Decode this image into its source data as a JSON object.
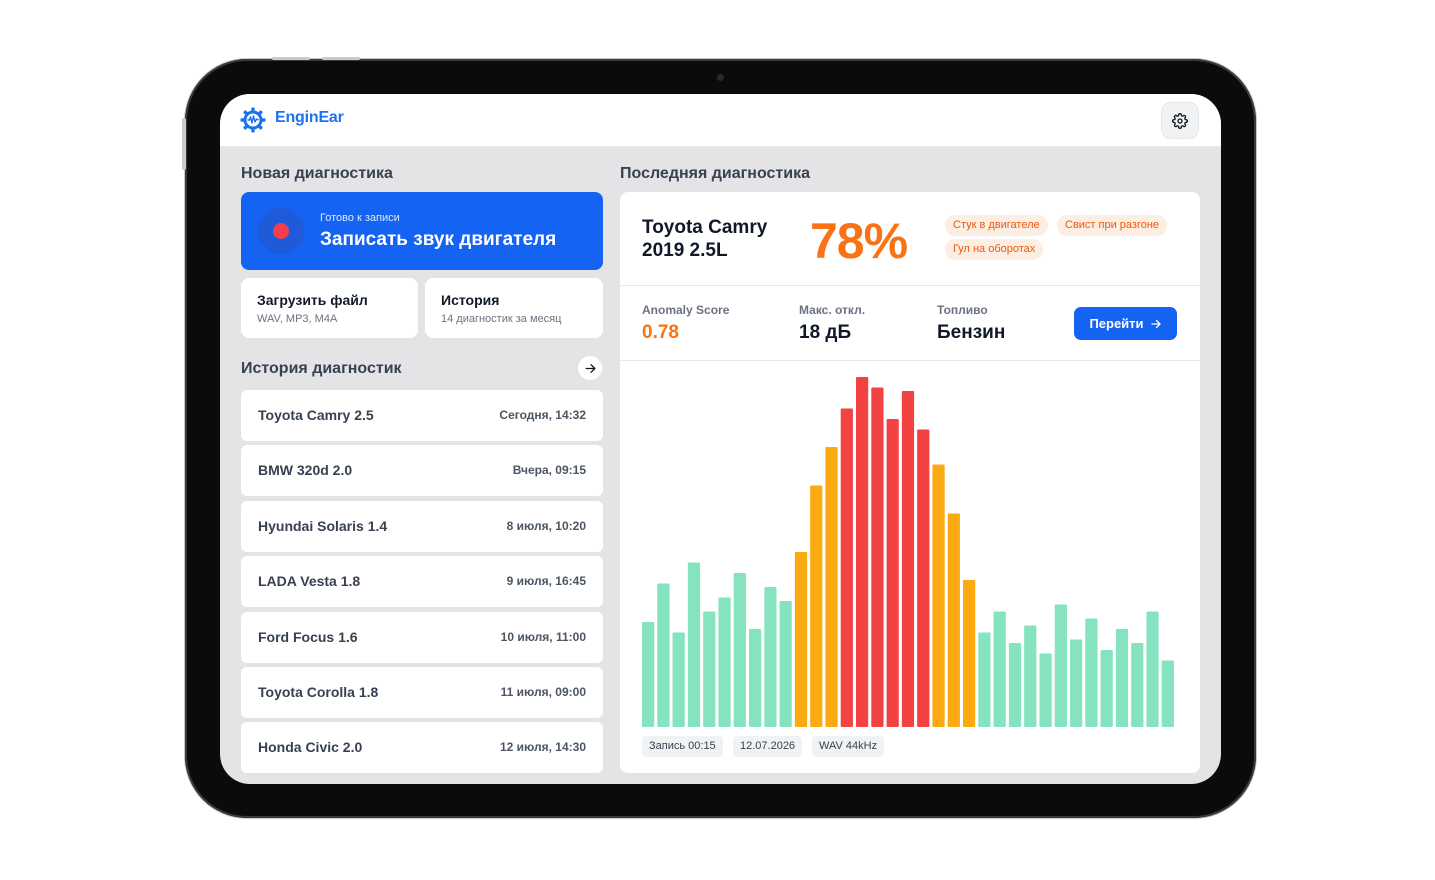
{
  "app": {
    "name": "EnginEar",
    "icons": {
      "logo": "gear-waveform-icon",
      "settings": "gear-icon",
      "arrow": "arrow-right-icon",
      "record": "record-dot-icon"
    }
  },
  "left": {
    "new_title": "Новая диагностика",
    "record": {
      "subtitle": "Готово к записи",
      "title": "Записать звук двигателя"
    },
    "upload": {
      "title": "Загрузить файл",
      "subtitle": "WAV, MP3, M4A"
    },
    "history_card": {
      "title": "История",
      "subtitle": "14 диагностик за месяц"
    },
    "history_title": "История диагностик",
    "history": [
      {
        "car": "Toyota Camry 2.5",
        "time": "Сегодня, 14:32"
      },
      {
        "car": "BMW 320d 2.0",
        "time": "Вчера, 09:15"
      },
      {
        "car": "Hyundai Solaris 1.4",
        "time": "8 июля, 10:20"
      },
      {
        "car": "LADA Vesta 1.8",
        "time": "9 июля, 16:45"
      },
      {
        "car": "Ford Focus 1.6",
        "time": "10 июля, 11:00"
      },
      {
        "car": "Toyota Corolla 1.8",
        "time": "11 июля, 09:00"
      },
      {
        "car": "Honda Civic 2.0",
        "time": "12 июля, 14:30"
      }
    ]
  },
  "right": {
    "title": "Последняя диагностика",
    "car_line1": "Toyota Camry",
    "car_line2": "2019 2.5L",
    "score_percent": "78%",
    "tags": [
      "Стук в двигателе",
      "Свист при разгоне",
      "Гул на оборотах"
    ],
    "stats": {
      "anomaly_label": "Anomaly Score",
      "anomaly_value": "0.78",
      "dev_label": "Макс. откл.",
      "dev_value": "18 дБ",
      "fuel_label": "Топливо",
      "fuel_value": "Бензин"
    },
    "go_label": "Перейти",
    "chips": [
      "Запись 00:15",
      "12.07.2026",
      "WAV 44kHz"
    ]
  },
  "colors": {
    "accent": "#1463f3",
    "orange": "#f97316",
    "bar_normal": "#86e3c0",
    "bar_warning": "#fbaa12",
    "bar_critical": "#f24242"
  },
  "chart_data": {
    "type": "bar",
    "title": "",
    "xlabel": "",
    "ylabel": "",
    "ylim": [
      0,
      1
    ],
    "values": [
      0.3,
      0.41,
      0.27,
      0.47,
      0.33,
      0.37,
      0.44,
      0.28,
      0.4,
      0.36,
      0.5,
      0.69,
      0.8,
      0.91,
      1.0,
      0.97,
      0.88,
      0.96,
      0.85,
      0.75,
      0.61,
      0.42,
      0.27,
      0.33,
      0.24,
      0.29,
      0.21,
      0.35,
      0.25,
      0.31,
      0.22,
      0.28,
      0.24,
      0.33,
      0.19
    ],
    "levels": [
      "n",
      "n",
      "n",
      "n",
      "n",
      "n",
      "n",
      "n",
      "n",
      "n",
      "w",
      "w",
      "w",
      "c",
      "c",
      "c",
      "c",
      "c",
      "c",
      "w",
      "w",
      "w",
      "n",
      "n",
      "n",
      "n",
      "n",
      "n",
      "n",
      "n",
      "n",
      "n",
      "n",
      "n",
      "n"
    ]
  }
}
